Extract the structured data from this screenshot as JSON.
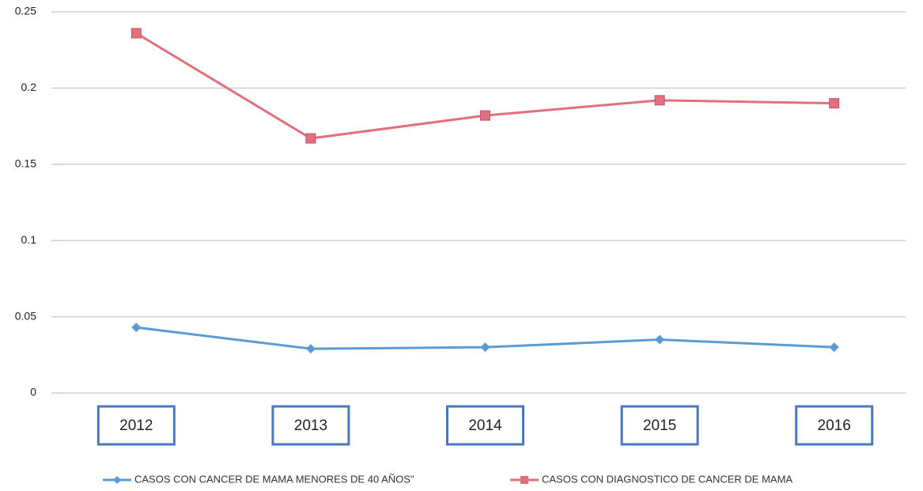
{
  "chart_data": {
    "type": "line",
    "categories": [
      "2012",
      "2013",
      "2014",
      "2015",
      "2016"
    ],
    "series": [
      {
        "name": "CASOS CON CANCER DE MAMA MENORES DE 40 AÑOS\"",
        "color": "#5b9bd5",
        "marker": "diamond",
        "values": [
          0.043,
          0.029,
          0.03,
          0.035,
          0.03
        ]
      },
      {
        "name": "CASOS CON DIAGNOSTICO DE CANCER DE MAMA",
        "color": "#e0707e",
        "marker": "square",
        "values": [
          0.236,
          0.167,
          0.182,
          0.192,
          0.19
        ]
      }
    ],
    "ylim": [
      0,
      0.25
    ],
    "yticks": [
      0,
      0.05,
      0.1,
      0.15,
      0.2,
      0.25
    ],
    "grid": true,
    "legend": "bottom"
  }
}
